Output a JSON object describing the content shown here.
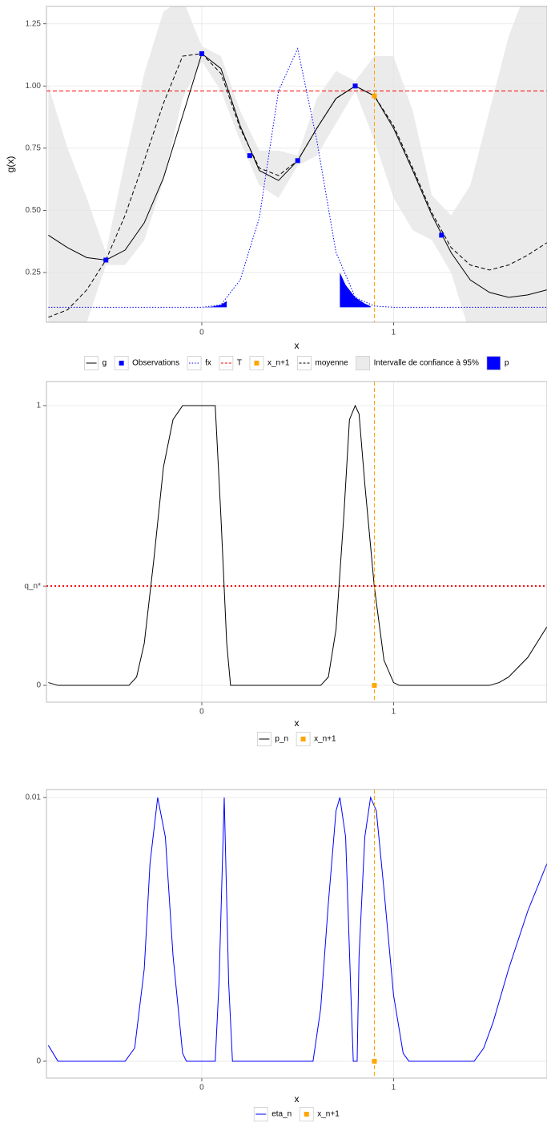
{
  "chart_data": [
    {
      "type": "line",
      "x_label": "x",
      "y_label": "g(x)",
      "xlim": [
        -0.81,
        1.8
      ],
      "ylim": [
        0.05,
        1.32
      ],
      "xticks": [
        0,
        1
      ],
      "yticks": [
        0.25,
        {
          "value": 0.5,
          "label": "0.50"
        },
        0.75,
        {
          "value": 1,
          "label": "1.00"
        },
        1.25
      ],
      "x": [
        -0.8,
        -0.7,
        -0.6,
        -0.5,
        -0.4,
        -0.3,
        -0.2,
        -0.1,
        0,
        0.1,
        0.2,
        0.3,
        0.4,
        0.5,
        0.6,
        0.7,
        0.8,
        0.9,
        1.0,
        1.1,
        1.2,
        1.3,
        1.4,
        1.5,
        1.6,
        1.7,
        1.8
      ],
      "series": [
        {
          "name": "g",
          "color": "#000000",
          "dash": "solid",
          "values": [
            0.4,
            0.35,
            0.31,
            0.3,
            0.34,
            0.45,
            0.63,
            0.88,
            1.13,
            1.07,
            0.84,
            0.66,
            0.62,
            0.7,
            0.83,
            0.95,
            1.0,
            0.96,
            0.83,
            0.66,
            0.48,
            0.33,
            0.22,
            0.17,
            0.15,
            0.16,
            0.18
          ]
        },
        {
          "name": "fx",
          "color": "#0000ff",
          "dash": "dotted",
          "values": [
            0.11,
            0.11,
            0.11,
            0.11,
            0.11,
            0.11,
            0.11,
            0.11,
            0.11,
            0.12,
            0.22,
            0.47,
            0.98,
            1.15,
            0.78,
            0.33,
            0.15,
            0.115,
            0.11,
            0.11,
            0.11,
            0.11,
            0.11,
            0.11,
            0.11,
            0.11,
            0.11
          ]
        },
        {
          "name": "moyenne",
          "color": "#000000",
          "dash": "dashed",
          "values": [
            0.07,
            0.1,
            0.18,
            0.3,
            0.48,
            0.7,
            0.93,
            1.12,
            1.13,
            1.05,
            0.83,
            0.67,
            0.64,
            0.7,
            0.83,
            0.95,
            1.0,
            0.96,
            0.84,
            0.67,
            0.49,
            0.35,
            0.28,
            0.26,
            0.28,
            0.32,
            0.37
          ]
        }
      ],
      "band": {
        "name": "Intervalle de confiance à 95%",
        "color": "#ebebeb",
        "lower": [
          -0.4,
          -0.2,
          0.05,
          0.28,
          0.28,
          0.38,
          0.62,
          0.95,
          1.1,
          0.98,
          0.78,
          0.6,
          0.55,
          0.68,
          0.72,
          0.85,
          0.98,
          0.78,
          0.55,
          0.42,
          0.38,
          0.25,
          0.0,
          -0.4,
          -0.7,
          -0.9,
          -1.0
        ],
        "upper": [
          1.0,
          0.75,
          0.55,
          0.33,
          0.7,
          1.05,
          1.3,
          1.35,
          1.16,
          1.12,
          0.9,
          0.74,
          0.74,
          0.72,
          0.95,
          1.06,
          1.02,
          1.12,
          1.12,
          0.9,
          0.56,
          0.48,
          0.6,
          0.9,
          1.2,
          1.4,
          1.5
        ]
      },
      "observations": {
        "name": "Observations",
        "color": "#0000ff",
        "x": [
          -0.5,
          0,
          0.25,
          0.5,
          0.8,
          1.25
        ],
        "values": [
          0.3,
          1.13,
          0.72,
          0.7,
          1.0,
          0.4
        ]
      },
      "threshold": {
        "name": "T",
        "color": "#ff0000",
        "dash": "dashed",
        "value": 0.98
      },
      "next_point": {
        "name": "x_n+1",
        "color": "#ffa500",
        "x": 0.9,
        "value": 0.96
      },
      "p_area": {
        "name": "p",
        "color": "#0000ff",
        "x": [
          0,
          0.05,
          0.1,
          0.13,
          0.4,
          0.72,
          0.75,
          0.8,
          0.85,
          0.88
        ],
        "values": [
          0.11,
          0.112,
          0.12,
          0.135,
          null,
          0.25,
          0.2,
          0.15,
          0.125,
          0.115
        ]
      }
    },
    {
      "type": "line",
      "x_label": "x",
      "xlim": [
        -0.81,
        1.8
      ],
      "ylim": [
        -0.06,
        1.086
      ],
      "xticks": [
        0,
        1
      ],
      "yticks": [
        0,
        {
          "value": 0.355,
          "label": "q_n*"
        },
        1
      ],
      "x": [
        -0.8,
        -0.75,
        -0.38,
        -0.34,
        -0.3,
        -0.25,
        -0.2,
        -0.15,
        -0.1,
        0.07,
        0.1,
        0.13,
        0.15,
        0.62,
        0.66,
        0.7,
        0.74,
        0.77,
        0.8,
        0.82,
        0.85,
        0.9,
        0.95,
        1.0,
        1.03,
        1.5,
        1.55,
        1.6,
        1.7,
        1.8
      ],
      "series": [
        {
          "name": "p_n",
          "color": "#000000",
          "dash": "solid",
          "values": [
            0.01,
            0,
            0,
            0.03,
            0.15,
            0.45,
            0.78,
            0.95,
            1,
            1,
            0.6,
            0.15,
            0,
            0,
            0.03,
            0.2,
            0.6,
            0.95,
            1,
            0.97,
            0.72,
            0.35,
            0.09,
            0.01,
            0,
            0,
            0.01,
            0.03,
            0.1,
            0.21
          ]
        }
      ],
      "threshold": {
        "color": "#ff0000",
        "dash": "dotted",
        "value": 0.355
      },
      "next_point": {
        "name": "x_n+1",
        "color": "#ffa500",
        "x": 0.9,
        "value": 0
      }
    },
    {
      "type": "line",
      "x_label": "x",
      "xlim": [
        -0.81,
        1.8
      ],
      "ylim": [
        -0.00064,
        0.0103
      ],
      "xticks": [
        0,
        1
      ],
      "yticks": [
        0,
        0.01
      ],
      "x": [
        -0.8,
        -0.75,
        -0.4,
        -0.35,
        -0.3,
        -0.27,
        -0.23,
        -0.19,
        -0.15,
        -0.1,
        -0.08,
        0.07,
        0.09,
        0.117,
        0.14,
        0.16,
        0.58,
        0.62,
        0.66,
        0.7,
        0.72,
        0.75,
        0.78,
        0.79,
        0.81,
        0.82,
        0.85,
        0.88,
        0.91,
        0.95,
        1.0,
        1.05,
        1.08,
        1.42,
        1.47,
        1.52,
        1.6,
        1.7,
        1.8
      ],
      "series": [
        {
          "name": "eta_n",
          "color": "#0000ff",
          "dash": "solid",
          "values": [
            0.0006,
            0,
            0,
            0.0005,
            0.0035,
            0.0075,
            0.01,
            0.0085,
            0.004,
            0.0003,
            0,
            0,
            0.003,
            0.01,
            0.003,
            0,
            0,
            0.002,
            0.006,
            0.0095,
            0.01,
            0.0085,
            0.002,
            0,
            0,
            0.004,
            0.0085,
            0.01,
            0.0095,
            0.0065,
            0.0025,
            0.0003,
            0,
            0,
            0.0005,
            0.0015,
            0.0035,
            0.0057,
            0.0075
          ]
        }
      ],
      "next_point": {
        "name": "x_n+1",
        "color": "#ffa500",
        "x": 0.9,
        "value": 0
      }
    }
  ]
}
